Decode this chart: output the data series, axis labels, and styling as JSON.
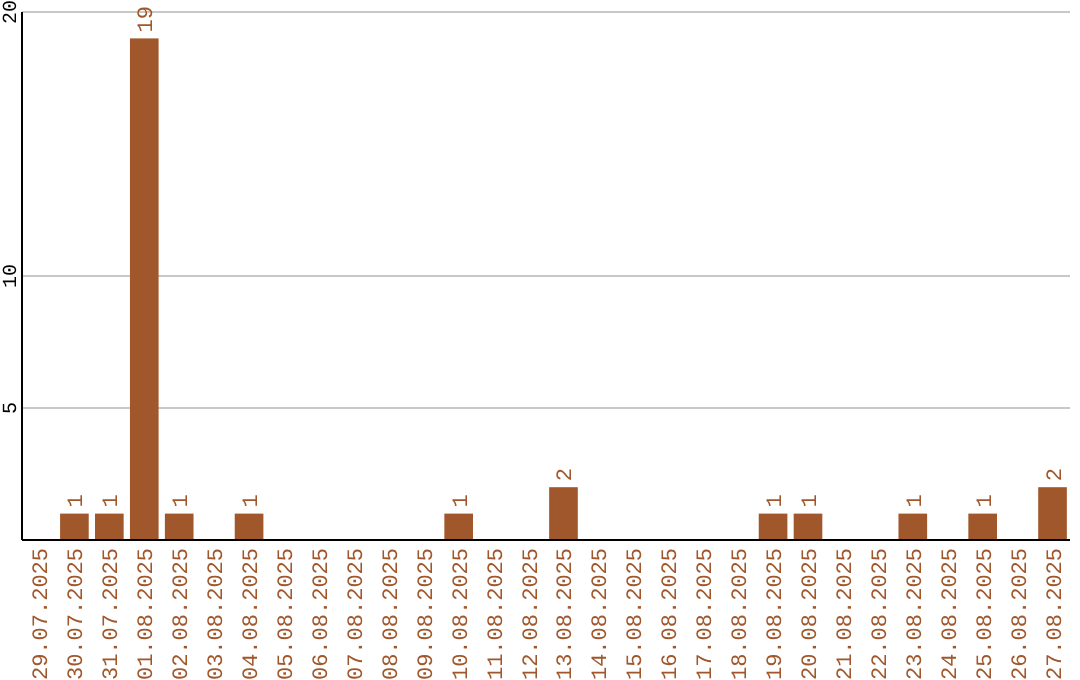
{
  "chart_data": {
    "type": "bar",
    "categories": [
      "29.07.2025",
      "30.07.2025",
      "31.07.2025",
      "01.08.2025",
      "02.08.2025",
      "03.08.2025",
      "04.08.2025",
      "05.08.2025",
      "06.08.2025",
      "07.08.2025",
      "08.08.2025",
      "09.08.2025",
      "10.08.2025",
      "11.08.2025",
      "12.08.2025",
      "13.08.2025",
      "14.08.2025",
      "15.08.2025",
      "16.08.2025",
      "17.08.2025",
      "18.08.2025",
      "19.08.2025",
      "20.08.2025",
      "21.08.2025",
      "22.08.2025",
      "23.08.2025",
      "24.08.2025",
      "25.08.2025",
      "26.08.2025",
      "27.08.2025"
    ],
    "values": [
      0,
      1,
      1,
      19,
      1,
      0,
      1,
      0,
      0,
      0,
      0,
      0,
      1,
      0,
      0,
      2,
      0,
      0,
      0,
      0,
      0,
      1,
      1,
      0,
      0,
      1,
      0,
      1,
      0,
      2
    ],
    "value_labels": [
      null,
      "1",
      "1",
      "19",
      "1",
      null,
      "1",
      null,
      null,
      null,
      null,
      null,
      "1",
      null,
      null,
      "2",
      null,
      null,
      null,
      null,
      null,
      "1",
      "1",
      null,
      null,
      "1",
      null,
      "1",
      null,
      "2"
    ],
    "color": "#a0572b",
    "ylim": [
      0,
      20
    ],
    "yticks": [
      5,
      10,
      20
    ],
    "grid": "y"
  }
}
